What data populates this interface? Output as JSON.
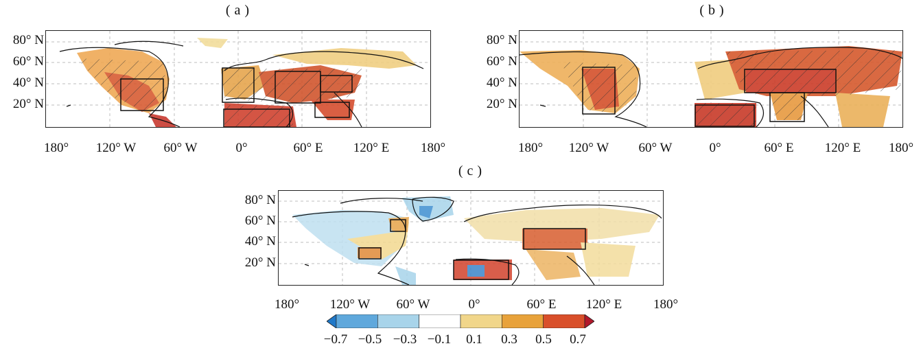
{
  "panels": [
    {
      "id": "a",
      "title": "(a)"
    },
    {
      "id": "b",
      "title": "(b)"
    },
    {
      "id": "c",
      "title": "(c)"
    }
  ],
  "axes": {
    "lat_ticks": [
      "80° N",
      "60° N",
      "40° N",
      "20° N"
    ],
    "lon_ticks": [
      "180°",
      "120° W",
      "60° W",
      "0°",
      "60° E",
      "120° E",
      "180°"
    ]
  },
  "colorbar": {
    "labels": [
      "−0.7",
      "−0.5",
      "−0.3",
      "−0.1",
      "0.1",
      "0.3",
      "0.5",
      "0.7"
    ],
    "colors": [
      "#1f78c8",
      "#5fa8dc",
      "#a8d4ea",
      "#ffffff",
      "#f1d68a",
      "#e8a23a",
      "#d94f2a",
      "#b2182b"
    ]
  },
  "chart_data": {
    "type": "heatmap",
    "panels": [
      {
        "panel": "a",
        "lon_range": [
          -180,
          180
        ],
        "lat_range": [
          0,
          90
        ],
        "boxes_lonlat": [
          [
            -110,
            40,
            -70,
            15
          ],
          [
            -15,
            55,
            15,
            25
          ],
          [
            35,
            50,
            75,
            25
          ],
          [
            75,
            45,
            100,
            30
          ],
          [
            -15,
            15,
            50,
            0
          ],
          [
            70,
            20,
            100,
            8
          ]
        ]
      },
      {
        "panel": "b",
        "lon_range": [
          -180,
          180
        ],
        "lat_range": [
          0,
          90
        ],
        "boxes_lonlat": [
          [
            -125,
            55,
            -95,
            12
          ],
          [
            -20,
            20,
            35,
            0
          ],
          [
            30,
            55,
            115,
            32
          ],
          [
            50,
            32,
            85,
            5
          ]
        ]
      },
      {
        "panel": "c",
        "lon_range": [
          -180,
          180
        ],
        "lat_range": [
          0,
          90
        ],
        "boxes_lonlat": [
          [
            -75,
            60,
            -62,
            52
          ],
          [
            -110,
            35,
            -90,
            25
          ],
          [
            -20,
            25,
            30,
            5
          ],
          [
            45,
            55,
            105,
            35
          ]
        ]
      }
    ],
    "colorbar_range": [
      -0.7,
      0.7
    ],
    "grid": true
  }
}
